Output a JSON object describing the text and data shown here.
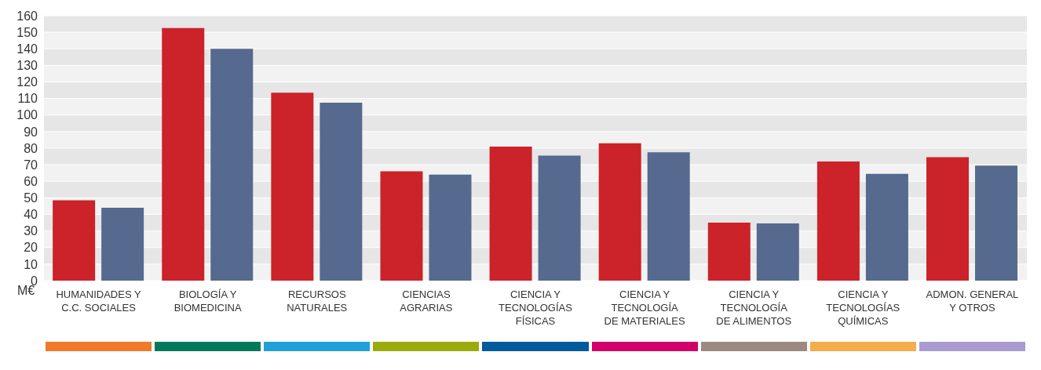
{
  "chart_data": {
    "type": "bar",
    "ylabel": "M€",
    "categories": [
      "HUMANIDADES Y\nC.C. SOCIALES",
      "BIOLOGÍA Y\nBIOMEDICINA",
      "RECURSOS\nNATURALES",
      "CIENCIAS\nAGRARIAS",
      "CIENCIA Y\nTECNOLOGÍAS\nFÍSICAS",
      "CIENCIA Y\nTECNOLOGÍA\nDE MATERIALES",
      "CIENCIA Y\nTECNOLOGÍA\nDE ALIMENTOS",
      "CIENCIA Y\nTECNOLOGÍAS\nQUÍMICAS",
      "ADMON. GENERAL\nY OTROS"
    ],
    "series": [
      {
        "color": "#cc2229",
        "values": [
          48.5,
          152.5,
          113.5,
          66,
          81,
          83,
          35,
          72,
          74.5
        ]
      },
      {
        "color": "#56698f",
        "values": [
          44,
          140,
          107.5,
          64,
          75.5,
          77.5,
          34.5,
          64.5,
          69.5
        ]
      }
    ],
    "ylim": [
      0,
      160
    ],
    "yticks": [
      0,
      10,
      20,
      30,
      40,
      50,
      60,
      70,
      80,
      90,
      100,
      110,
      120,
      130,
      140,
      150,
      160
    ],
    "grid": "y"
  }
}
